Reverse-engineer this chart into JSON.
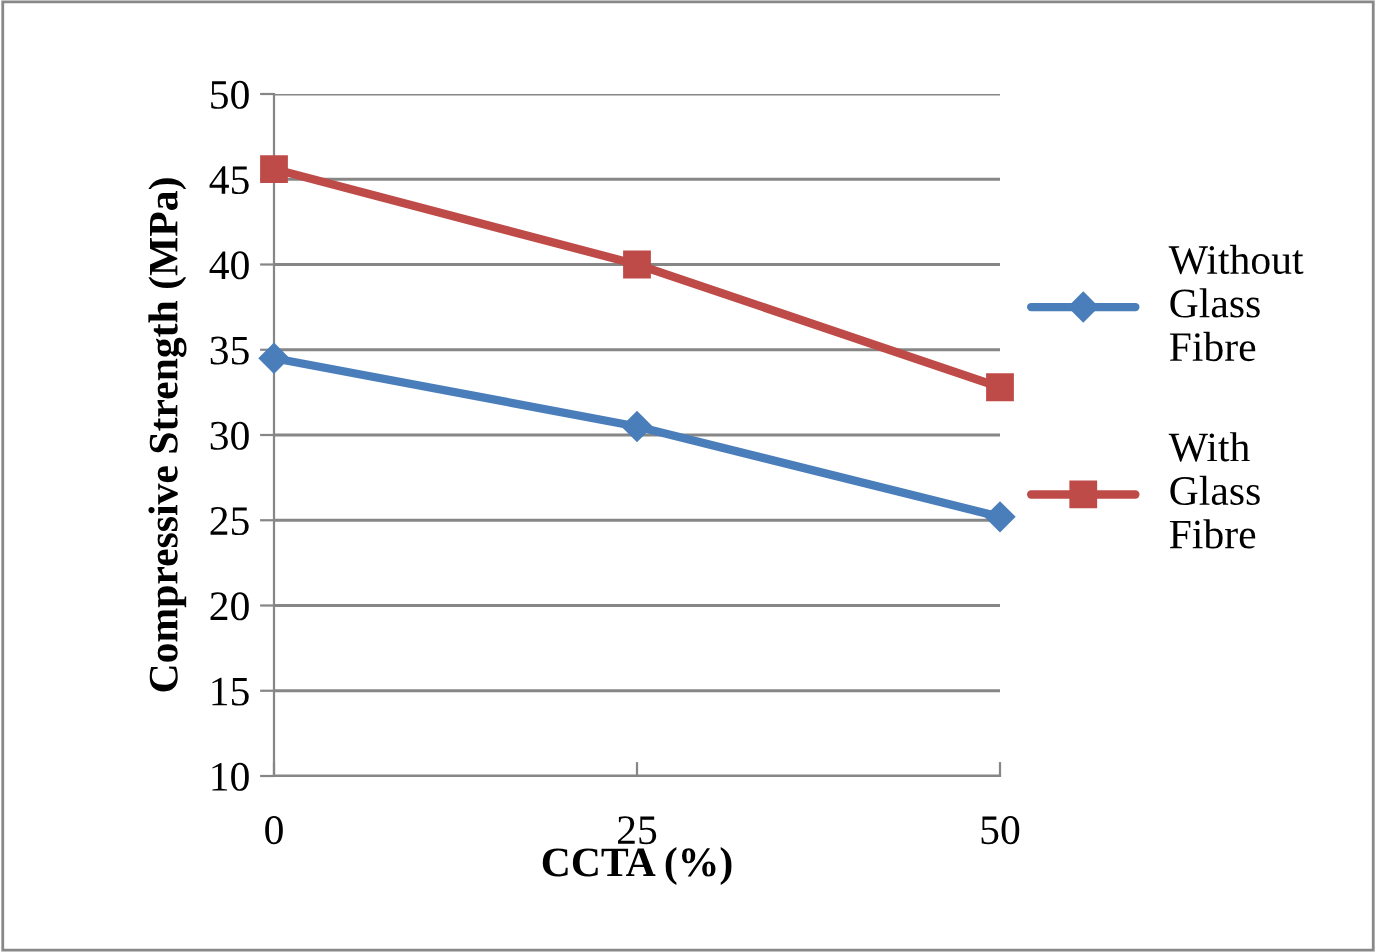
{
  "chart_data": {
    "type": "line",
    "xlabel": "CCTA (%)",
    "ylabel": "Compressive Strength (MPa)",
    "categories": [
      "0",
      "25",
      "50"
    ],
    "series": [
      {
        "name": "Without Glass Fibre",
        "color": "#4a7ebb",
        "marker": "diamond",
        "values": [
          34.5,
          30.5,
          25.2
        ]
      },
      {
        "name": "With Glass Fibre",
        "color": "#be4b48",
        "marker": "square",
        "values": [
          45.6,
          40.0,
          32.8
        ]
      }
    ],
    "ylim": [
      10,
      50
    ],
    "yticks": [
      10,
      15,
      20,
      25,
      30,
      35,
      40,
      45,
      50
    ],
    "grid": "y",
    "legend": "right",
    "line_style": "solid"
  }
}
